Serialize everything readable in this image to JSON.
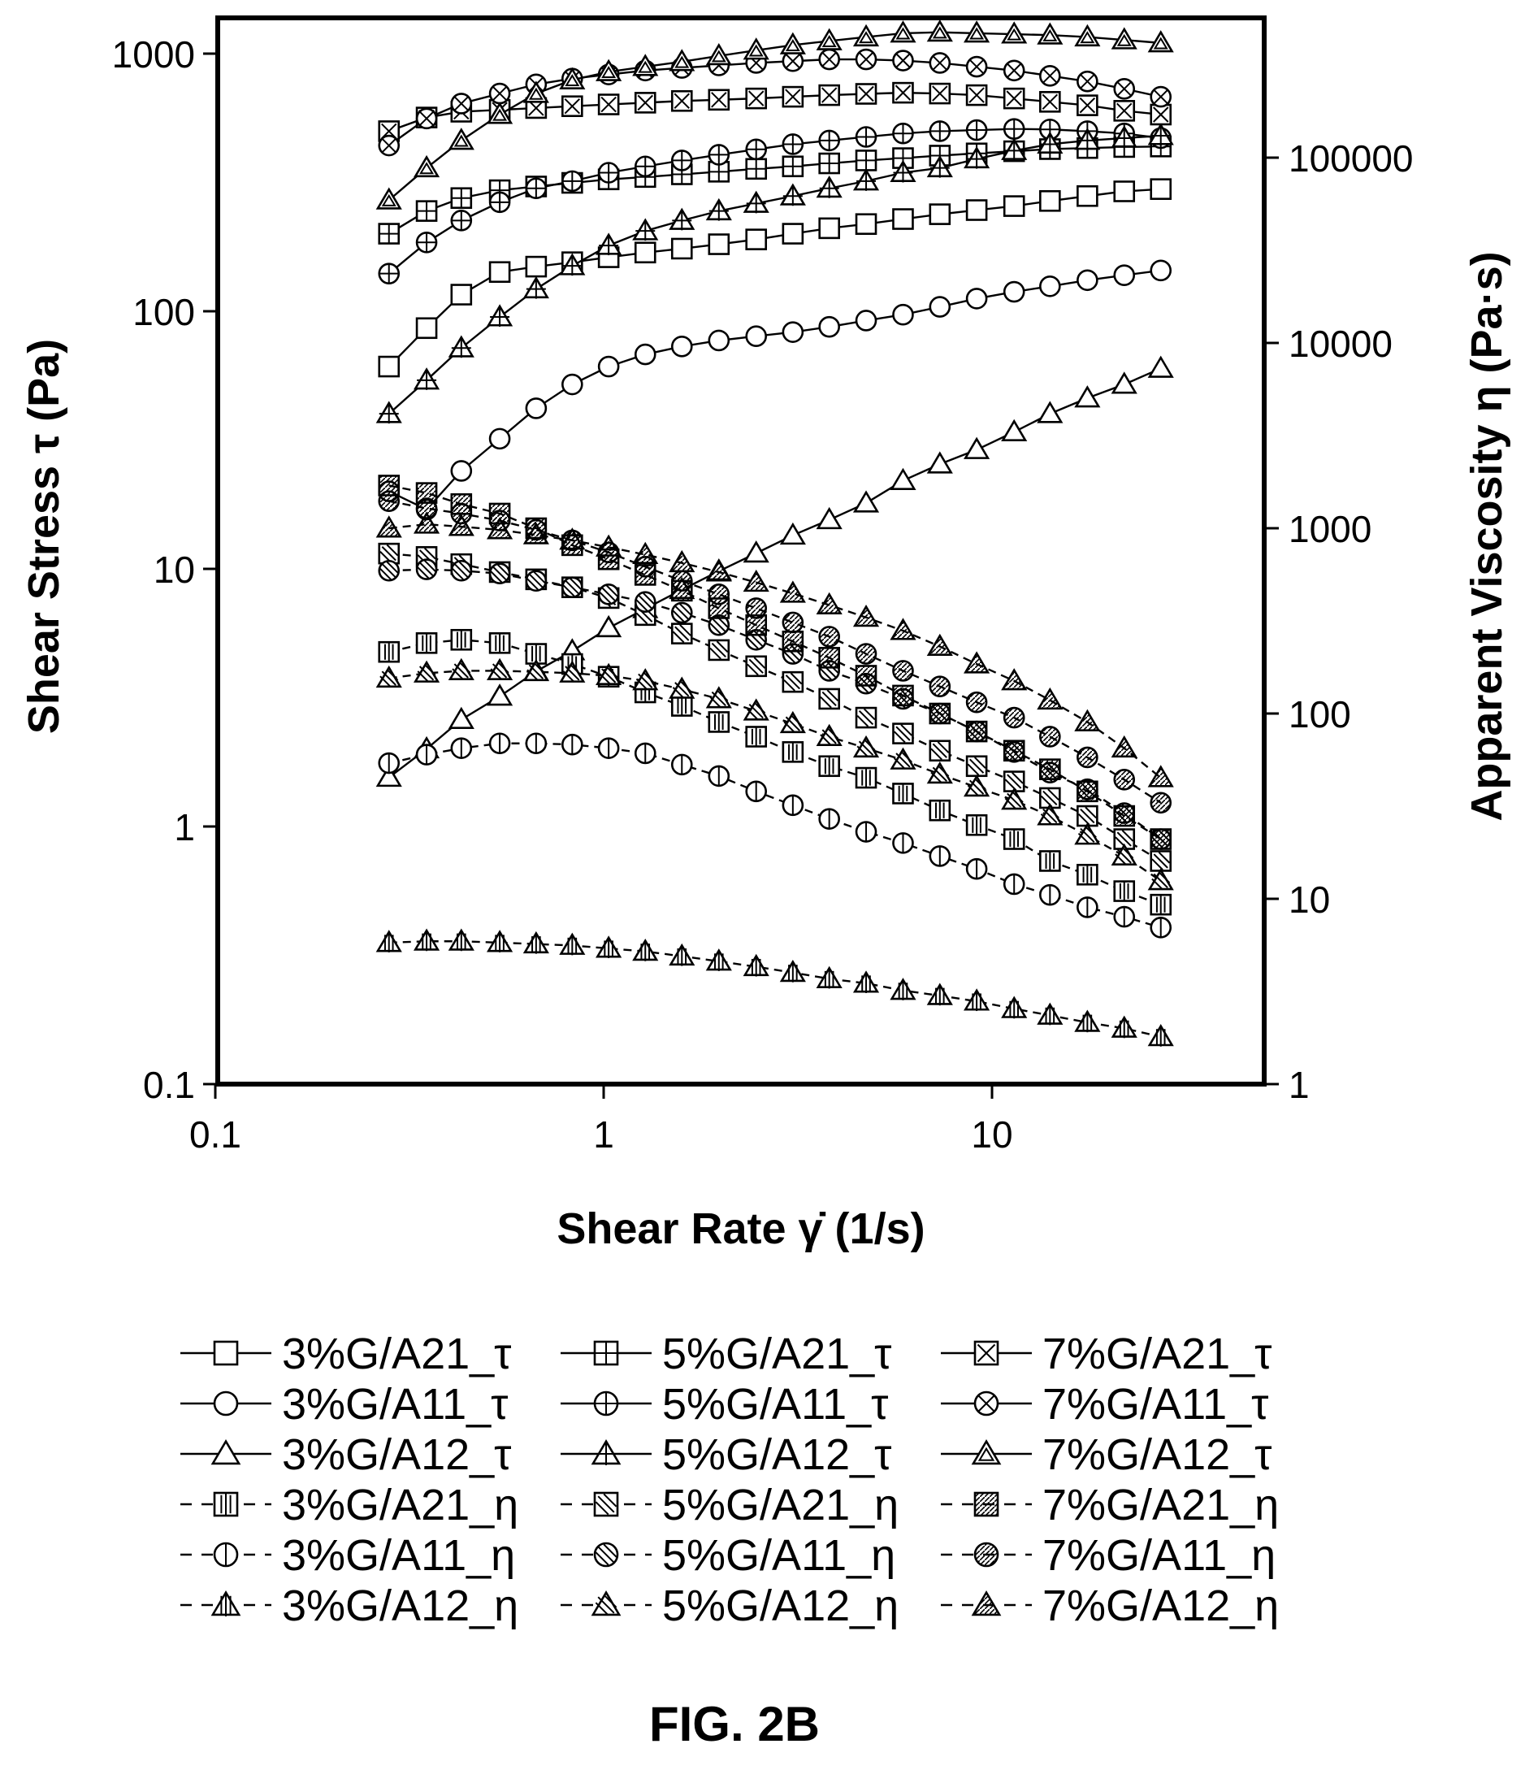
{
  "figure_label": "FIG. 2B",
  "chart_data": {
    "type": "scatter",
    "xlabel": "Shear Rate γ̇ (1/s)",
    "ylabel_left": "Shear Stress τ (Pa)",
    "ylabel_right": "Apparent Viscosity η (Pa·s)",
    "x_scale": "log",
    "y_scale": "log",
    "xlim": [
      0.1,
      60
    ],
    "ylim_left": [
      0.1,
      1300
    ],
    "ylim_right": [
      1,
      300000
    ],
    "x_ticks": [
      "0.1",
      "1",
      "10"
    ],
    "y_left_ticks": [
      "0.1",
      "1",
      "10",
      "100",
      "1000"
    ],
    "y_right_ticks": [
      "1",
      "10",
      "100",
      "1000",
      "10000",
      "100000"
    ],
    "grid": false,
    "legend_placement": "bottom",
    "x": [
      0.28,
      0.35,
      0.43,
      0.54,
      0.67,
      0.83,
      1.03,
      1.28,
      1.59,
      1.98,
      2.47,
      3.07,
      3.81,
      4.74,
      5.9,
      7.34,
      9.13,
      11.4,
      14.1,
      17.6,
      21.9,
      27.2
    ],
    "series": [
      {
        "name": "3%G/A21_τ",
        "axis": "left",
        "marker": "square",
        "fill": "none",
        "line": "solid",
        "values": [
          61,
          86,
          116,
          142,
          149,
          155,
          162,
          169,
          175,
          182,
          190,
          200,
          210,
          218,
          228,
          238,
          247,
          256,
          268,
          280,
          292,
          298
        ]
      },
      {
        "name": "3%G/A11_τ",
        "axis": "left",
        "marker": "circle",
        "fill": "none",
        "line": "solid",
        "values": [
          20,
          17,
          24,
          32,
          42,
          52,
          61,
          68,
          73,
          77,
          80,
          83,
          87,
          92,
          97,
          104,
          112,
          119,
          125,
          132,
          138,
          144
        ]
      },
      {
        "name": "3%G/A12_τ",
        "axis": "left",
        "marker": "triangle",
        "fill": "none",
        "line": "solid",
        "values": [
          1.55,
          2.0,
          2.6,
          3.2,
          4.0,
          4.8,
          5.9,
          7.0,
          8.3,
          9.8,
          11.5,
          13.5,
          15.5,
          18.0,
          22.0,
          25.5,
          29.0,
          34.0,
          40.0,
          46.0,
          52.0,
          60.0
        ]
      },
      {
        "name": "5%G/A21_τ",
        "axis": "left",
        "marker": "square-plus",
        "fill": "none",
        "line": "solid",
        "values": [
          200,
          245,
          275,
          295,
          305,
          315,
          325,
          332,
          340,
          348,
          357,
          365,
          375,
          385,
          393,
          402,
          410,
          418,
          426,
          430,
          434,
          436
        ]
      },
      {
        "name": "5%G/A11_τ",
        "axis": "left",
        "marker": "circle-plus",
        "fill": "none",
        "line": "solid",
        "values": [
          140,
          185,
          225,
          265,
          300,
          320,
          345,
          365,
          385,
          405,
          425,
          445,
          460,
          475,
          490,
          500,
          505,
          510,
          508,
          500,
          490,
          470
        ]
      },
      {
        "name": "5%G/A12_τ",
        "axis": "left",
        "marker": "triangle-plus",
        "fill": "none",
        "line": "solid",
        "values": [
          40,
          54,
          72,
          95,
          122,
          150,
          180,
          205,
          225,
          245,
          262,
          280,
          300,
          320,
          345,
          360,
          390,
          420,
          445,
          460,
          470,
          480
        ]
      },
      {
        "name": "7%G/A21_τ",
        "axis": "left",
        "marker": "square-x",
        "fill": "none",
        "line": "solid",
        "values": [
          500,
          565,
          595,
          605,
          615,
          625,
          635,
          645,
          655,
          662,
          670,
          680,
          690,
          698,
          705,
          700,
          690,
          670,
          650,
          630,
          600,
          580
        ]
      },
      {
        "name": "7%G/A11_τ",
        "axis": "left",
        "marker": "circle-x",
        "fill": "none",
        "line": "solid",
        "values": [
          440,
          560,
          640,
          700,
          760,
          800,
          830,
          860,
          880,
          900,
          920,
          935,
          950,
          950,
          940,
          920,
          890,
          860,
          820,
          780,
          730,
          680
        ]
      },
      {
        "name": "7%G/A12_τ",
        "axis": "left",
        "marker": "triangle-double",
        "fill": "none",
        "line": "solid",
        "values": [
          270,
          360,
          460,
          580,
          700,
          790,
          850,
          890,
          930,
          980,
          1030,
          1080,
          1120,
          1160,
          1200,
          1210,
          1200,
          1190,
          1180,
          1160,
          1130,
          1100
        ]
      },
      {
        "name": "3%G/A21_η",
        "axis": "right",
        "marker": "square-vlines",
        "fill": "none",
        "line": "dashed",
        "values": [
          215,
          240,
          250,
          240,
          210,
          185,
          158,
          130,
          110,
          90,
          75,
          62,
          52,
          45,
          37,
          30,
          25,
          21,
          16,
          13.5,
          11,
          9.3
        ]
      },
      {
        "name": "3%G/A11_η",
        "axis": "right",
        "marker": "circle-vline",
        "fill": "none",
        "line": "dashed",
        "values": [
          54,
          60,
          65,
          69,
          69,
          68,
          65,
          61,
          53,
          46,
          38,
          32,
          27,
          23,
          20,
          17,
          14.5,
          12,
          10.5,
          9,
          8,
          7
        ]
      },
      {
        "name": "3%G/A12_η",
        "axis": "right",
        "marker": "triangle-vlines",
        "fill": "none",
        "line": "dashed",
        "values": [
          5.8,
          5.9,
          5.9,
          5.8,
          5.7,
          5.6,
          5.4,
          5.2,
          4.9,
          4.6,
          4.3,
          4.0,
          3.7,
          3.5,
          3.2,
          3.0,
          2.8,
          2.55,
          2.35,
          2.15,
          2.0,
          1.8
        ]
      },
      {
        "name": "5%G/A21_η",
        "axis": "right",
        "marker": "square-diag",
        "fill": "none",
        "line": "dashed",
        "values": [
          730,
          700,
          640,
          580,
          530,
          480,
          420,
          340,
          270,
          220,
          180,
          148,
          120,
          95,
          78,
          63,
          52,
          43,
          35,
          28,
          21,
          16
        ]
      },
      {
        "name": "5%G/A11_η",
        "axis": "right",
        "marker": "circle-diag",
        "fill": "none",
        "line": "dashed",
        "values": [
          590,
          600,
          590,
          570,
          520,
          480,
          440,
          400,
          350,
          300,
          250,
          210,
          170,
          145,
          120,
          100,
          80,
          62,
          48,
          39,
          29,
          21
        ]
      },
      {
        "name": "5%G/A12_η",
        "axis": "right",
        "marker": "triangle-diag",
        "fill": "none",
        "line": "dashed",
        "values": [
          155,
          165,
          170,
          170,
          168,
          165,
          160,
          150,
          135,
          120,
          103,
          88,
          75,
          65,
          56,
          47,
          40,
          34,
          28,
          22,
          17,
          12.5
        ]
      },
      {
        "name": "7%G/A21_η",
        "axis": "right",
        "marker": "square-diag-fill",
        "fill": "none",
        "line": "dashed",
        "values": [
          1700,
          1550,
          1350,
          1200,
          1000,
          810,
          680,
          560,
          460,
          370,
          300,
          245,
          200,
          160,
          125,
          100,
          80,
          63,
          50,
          38,
          28,
          21
        ]
      },
      {
        "name": "7%G/A11_η",
        "axis": "right",
        "marker": "circle-diag-fill",
        "fill": "none",
        "line": "dashed",
        "values": [
          1400,
          1280,
          1200,
          1100,
          980,
          860,
          740,
          620,
          520,
          440,
          370,
          310,
          260,
          210,
          170,
          140,
          115,
          95,
          75,
          58,
          44,
          33
        ]
      },
      {
        "name": "7%G/A12_η",
        "axis": "right",
        "marker": "triangle-diag-fill",
        "fill": "none",
        "line": "dashed",
        "values": [
          1000,
          1050,
          1020,
          980,
          920,
          860,
          790,
          720,
          650,
          580,
          510,
          445,
          385,
          330,
          280,
          230,
          185,
          150,
          118,
          90,
          65,
          45
        ]
      }
    ]
  }
}
